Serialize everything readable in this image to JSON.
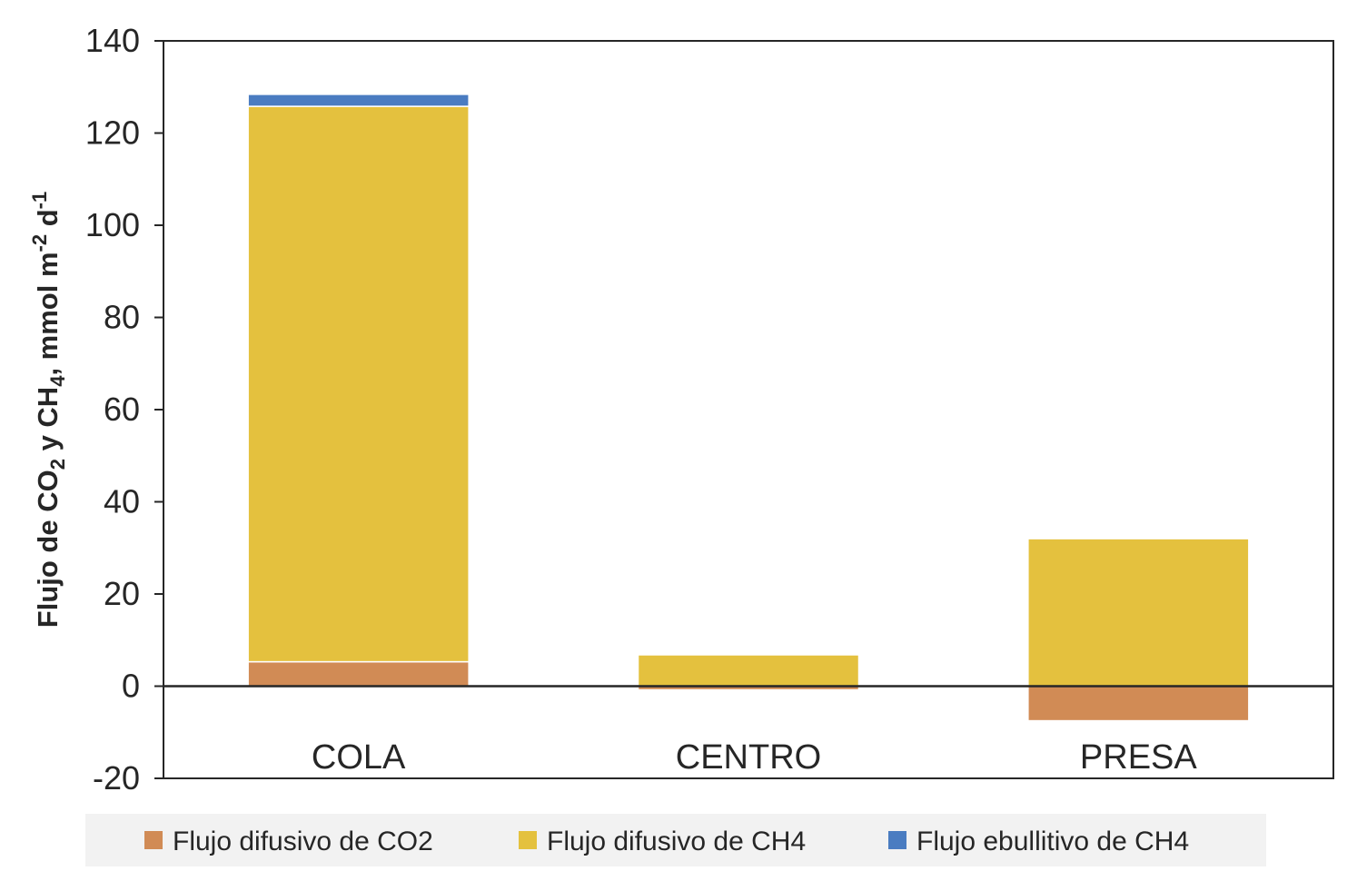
{
  "chart_data": {
    "type": "bar",
    "stacked": true,
    "categories": [
      "COLA",
      "CENTRO",
      "PRESA"
    ],
    "series": [
      {
        "name": "Flujo difusivo de CO2",
        "values": [
          5.3,
          -0.8,
          -7.5
        ],
        "color": "#D18B55"
      },
      {
        "name": "Flujo difusivo de CH4",
        "values": [
          120.5,
          6.8,
          32.0
        ],
        "color": "#E4C13E"
      },
      {
        "name": "Flujo ebullitivo de CH4",
        "values": [
          2.6,
          0.0,
          0.0
        ],
        "color": "#4A7CC1"
      }
    ],
    "ylabel": {
      "p1": "Flujo de CO",
      "s1": "2",
      "p2": " y CH",
      "s2": "4",
      "p3": ", mmol m",
      "s3": "-2",
      "p4": " d",
      "s4": "-1"
    },
    "ylim": [
      -20,
      140
    ],
    "yticks": [
      "-20",
      "0",
      "20",
      "40",
      "60",
      "80",
      "100",
      "120",
      "140"
    ],
    "grid": false,
    "legend_position": "bottom"
  }
}
